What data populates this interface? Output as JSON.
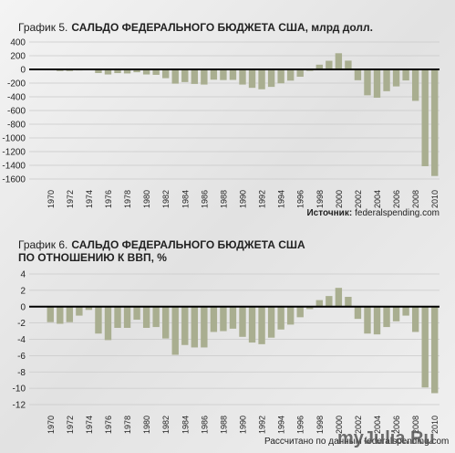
{
  "chart_data": [
    {
      "type": "bar",
      "label": "График 5.",
      "title": "САЛЬДО ФЕДЕРАЛЬНОГО БЮДЖЕТА США, млрд долл.",
      "source_label": "Источник:",
      "source": "federalspending.com",
      "categories": [
        "1970",
        null,
        "1972",
        null,
        "1974",
        null,
        "1976",
        null,
        "1978",
        null,
        "1980",
        null,
        "1982",
        null,
        "1984",
        null,
        "1986",
        null,
        "1988",
        null,
        "1990",
        null,
        "1992",
        null,
        "1994",
        null,
        "1996",
        null,
        "1998",
        null,
        "2000",
        null,
        "2002",
        null,
        "2004",
        null,
        "2006",
        null,
        "2008",
        null,
        "2010"
      ],
      "values": [
        -3,
        -23,
        -23,
        -15,
        -6,
        -53,
        -74,
        -54,
        -59,
        -41,
        -74,
        -79,
        -128,
        -208,
        -185,
        -212,
        -221,
        -150,
        -155,
        -153,
        -221,
        -269,
        -290,
        -255,
        -203,
        -164,
        -107,
        -22,
        69,
        126,
        236,
        128,
        -158,
        -378,
        -413,
        -318,
        -248,
        -161,
        -459,
        -1413,
        -1556
      ],
      "color": "#a9ae90",
      "ylim": [
        -1600,
        400
      ],
      "yticks": [
        400,
        200,
        0,
        -200,
        -400,
        -600,
        -800,
        -1000,
        -1200,
        -1400,
        -1600
      ],
      "grid": true
    },
    {
      "type": "bar",
      "label": "График 6.",
      "title": "САЛЬДО ФЕДЕРАЛЬНОГО БЮДЖЕТА США ПО ОТНОШЕНИЮ К ВВП, %",
      "source": "Рассчитано по данным federalspending.com",
      "categories": [
        "1970",
        null,
        "1972",
        null,
        "1974",
        null,
        "1976",
        null,
        "1978",
        null,
        "1980",
        null,
        "1982",
        null,
        "1984",
        null,
        "1986",
        null,
        "1988",
        null,
        "1990",
        null,
        "1992",
        null,
        "1994",
        null,
        "1996",
        null,
        "1998",
        null,
        "2000",
        null,
        "2002",
        null,
        "2004",
        null,
        "2006",
        null,
        "2008",
        null,
        "2010"
      ],
      "values": [
        -1.9,
        -2.1,
        -1.9,
        -1.1,
        -0.4,
        -3.3,
        -4.1,
        -2.6,
        -2.6,
        -1.6,
        -2.6,
        -2.5,
        -3.9,
        -5.9,
        -4.7,
        -5.0,
        -5.0,
        -3.1,
        -3.0,
        -2.7,
        -3.7,
        -4.4,
        -4.6,
        -3.8,
        -2.8,
        -2.2,
        -1.3,
        -0.3,
        0.8,
        1.3,
        2.3,
        1.2,
        -1.5,
        -3.3,
        -3.4,
        -2.5,
        -1.8,
        -1.1,
        -3.1,
        -9.9,
        -10.6
      ],
      "color": "#a9ae90",
      "ylim": [
        -12,
        4
      ],
      "yticks": [
        4,
        2,
        0,
        -2,
        -4,
        -6,
        -8,
        -10,
        -12
      ],
      "grid": true
    }
  ],
  "watermark": "myJulia.Ru"
}
